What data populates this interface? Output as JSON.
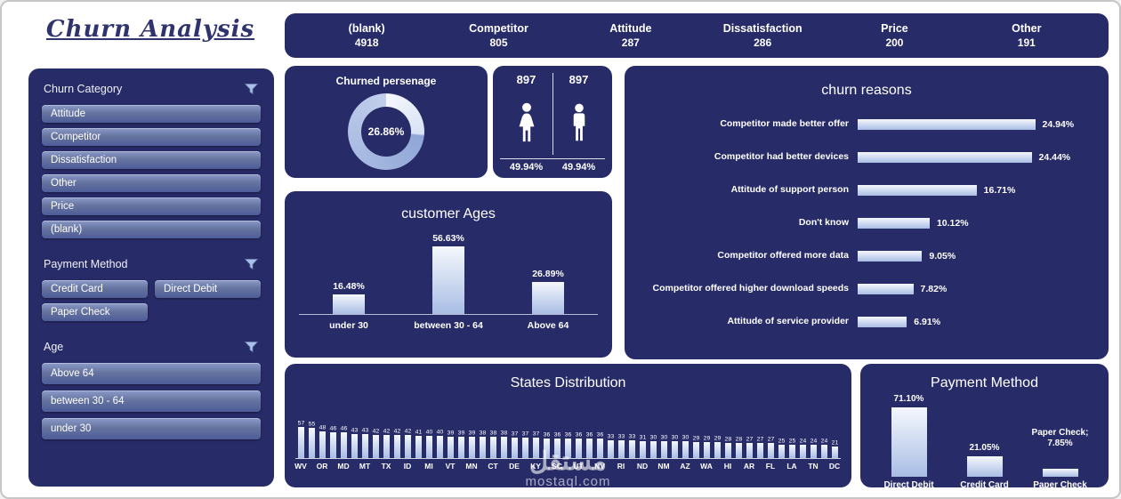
{
  "page": {
    "title": "Churn Analysis",
    "watermark_ar": "مستقل",
    "watermark_en": "mostaql.com"
  },
  "colors": {
    "panel": "#272b67",
    "title": "#2f336e",
    "bar_top": "#f5f8fd",
    "bar_bottom": "#a9bde4",
    "button_top": "#8b9ac9",
    "button_mid": "#66749f",
    "button_bottom": "#4d5c99",
    "funnel": "#a9c0e8"
  },
  "kpis": [
    {
      "label": "(blank)",
      "value": "4918"
    },
    {
      "label": "Competitor",
      "value": "805"
    },
    {
      "label": "Attitude",
      "value": "287"
    },
    {
      "label": "Dissatisfaction",
      "value": "286"
    },
    {
      "label": "Price",
      "value": "200"
    },
    {
      "label": "Other",
      "value": "191"
    }
  ],
  "slicers": [
    {
      "title": "Churn Category",
      "layout": "full",
      "items": [
        "Attitude",
        "Competitor",
        "Dissatisfaction",
        "Other",
        "Price",
        "(blank)"
      ]
    },
    {
      "title": "Payment Method",
      "layout": "half",
      "items": [
        "Credit Card",
        "Direct Debit",
        "Paper Check"
      ]
    },
    {
      "title": "Age",
      "layout": "full",
      "items": [
        "Above 64",
        "between 30 - 64",
        "under 30"
      ]
    }
  ],
  "chart_data": [
    {
      "id": "churned_percentage",
      "type": "pie",
      "title": "Churned persenage",
      "center_label": "26.86%",
      "values": [
        26.86,
        73.14
      ]
    },
    {
      "id": "churn_reasons",
      "type": "bar",
      "orientation": "horizontal",
      "title": "churn reasons",
      "categories": [
        "Competitor made better offer",
        "Competitor had better devices",
        "Attitude of support person",
        "Don't know",
        "Competitor offered more data",
        "Competitor offered higher download speeds",
        "Attitude of service provider"
      ],
      "values": [
        24.94,
        24.44,
        16.71,
        10.12,
        9.05,
        7.82,
        6.91
      ],
      "data_labels": [
        "24.94%",
        "24.44%",
        "16.71%",
        "10.12%",
        "9.05%",
        "7.82%",
        "6.91%"
      ],
      "xlim": [
        0,
        25
      ],
      "grid": false,
      "legend": false
    },
    {
      "id": "customer_ages",
      "type": "bar",
      "title": "customer Ages",
      "categories": [
        "under 30",
        "between 30 - 64",
        "Above 64"
      ],
      "values": [
        16.48,
        56.63,
        26.89
      ],
      "data_labels": [
        "16.48%",
        "56.63%",
        "26.89%"
      ],
      "ylim": [
        0,
        60
      ],
      "grid": false,
      "legend": false
    },
    {
      "id": "states_distribution",
      "type": "bar",
      "title": "States Distribution",
      "values": [
        57,
        55,
        48,
        46,
        46,
        43,
        43,
        42,
        42,
        42,
        42,
        41,
        40,
        40,
        39,
        39,
        39,
        38,
        38,
        38,
        37,
        37,
        37,
        36,
        36,
        36,
        36,
        36,
        36,
        33,
        33,
        33,
        31,
        30,
        30,
        30,
        30,
        29,
        29,
        29,
        28,
        28,
        27,
        27,
        27,
        25,
        25,
        24,
        24,
        24,
        21
      ],
      "x_axis_labels": [
        "WV",
        "OR",
        "MD",
        "MT",
        "TX",
        "ID",
        "MI",
        "VT",
        "MN",
        "CT",
        "DE",
        "KY",
        "SC",
        "UT",
        "NV",
        "RI",
        "ND",
        "NM",
        "AZ",
        "WA",
        "HI",
        "AR",
        "FL",
        "LA",
        "TN",
        "DC"
      ],
      "label_placement": "under every second bar",
      "ylim": [
        0,
        60
      ],
      "grid": false,
      "legend": false
    },
    {
      "id": "payment_method",
      "type": "bar",
      "title": "Payment Method",
      "categories": [
        "Direct Debit",
        "Credit Card",
        "Paper Check"
      ],
      "values": [
        71.1,
        21.05,
        7.85
      ],
      "data_labels": [
        [
          "71.10%"
        ],
        [
          "21.05%"
        ],
        [
          "Paper Check;",
          "7.85%"
        ]
      ],
      "ylim": [
        0,
        80
      ],
      "grid": false,
      "legend": false
    },
    {
      "id": "gender_split",
      "type": "pictogram",
      "categories": [
        "Female",
        "Male"
      ],
      "counts": [
        "897",
        "897"
      ],
      "percentages": [
        "49.94%",
        "49.94%"
      ]
    }
  ]
}
